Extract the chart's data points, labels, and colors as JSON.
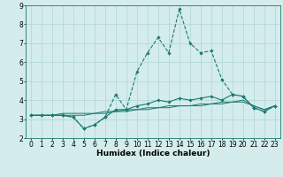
{
  "x": [
    0,
    1,
    2,
    3,
    4,
    5,
    6,
    7,
    8,
    9,
    10,
    11,
    12,
    13,
    14,
    15,
    16,
    17,
    18,
    19,
    20,
    21,
    22,
    23
  ],
  "line1": [
    3.2,
    3.2,
    3.2,
    3.2,
    3.1,
    2.5,
    2.7,
    3.1,
    4.3,
    3.5,
    5.5,
    6.5,
    7.3,
    6.5,
    8.8,
    7.0,
    6.5,
    6.6,
    5.1,
    4.3,
    4.2,
    3.6,
    3.4,
    3.7
  ],
  "line2": [
    3.2,
    3.2,
    3.2,
    3.2,
    3.1,
    2.5,
    2.7,
    3.1,
    3.5,
    3.5,
    3.7,
    3.8,
    4.0,
    3.9,
    4.1,
    4.0,
    4.1,
    4.2,
    4.0,
    4.3,
    4.2,
    3.6,
    3.4,
    3.7
  ],
  "line3": [
    3.2,
    3.2,
    3.2,
    3.2,
    3.2,
    3.2,
    3.3,
    3.3,
    3.4,
    3.4,
    3.5,
    3.5,
    3.6,
    3.6,
    3.7,
    3.7,
    3.7,
    3.8,
    3.8,
    3.9,
    3.9,
    3.7,
    3.5,
    3.7
  ],
  "line4": [
    3.2,
    3.2,
    3.2,
    3.3,
    3.3,
    3.3,
    3.3,
    3.4,
    3.4,
    3.5,
    3.5,
    3.6,
    3.6,
    3.7,
    3.7,
    3.7,
    3.8,
    3.8,
    3.9,
    3.9,
    4.0,
    3.7,
    3.5,
    3.7
  ],
  "color_main": "#1a7a6e",
  "bg_color": "#d4ecec",
  "grid_color": "#aed4d4",
  "xlim": [
    -0.5,
    23.5
  ],
  "ylim": [
    2.0,
    9.0
  ],
  "yticks": [
    2,
    3,
    4,
    5,
    6,
    7,
    8,
    9
  ],
  "xticks": [
    0,
    1,
    2,
    3,
    4,
    5,
    6,
    7,
    8,
    9,
    10,
    11,
    12,
    13,
    14,
    15,
    16,
    17,
    18,
    19,
    20,
    21,
    22,
    23
  ],
  "xlabel": "Humidex (Indice chaleur)",
  "xlabel_fontsize": 6.5,
  "tick_fontsize": 5.5
}
